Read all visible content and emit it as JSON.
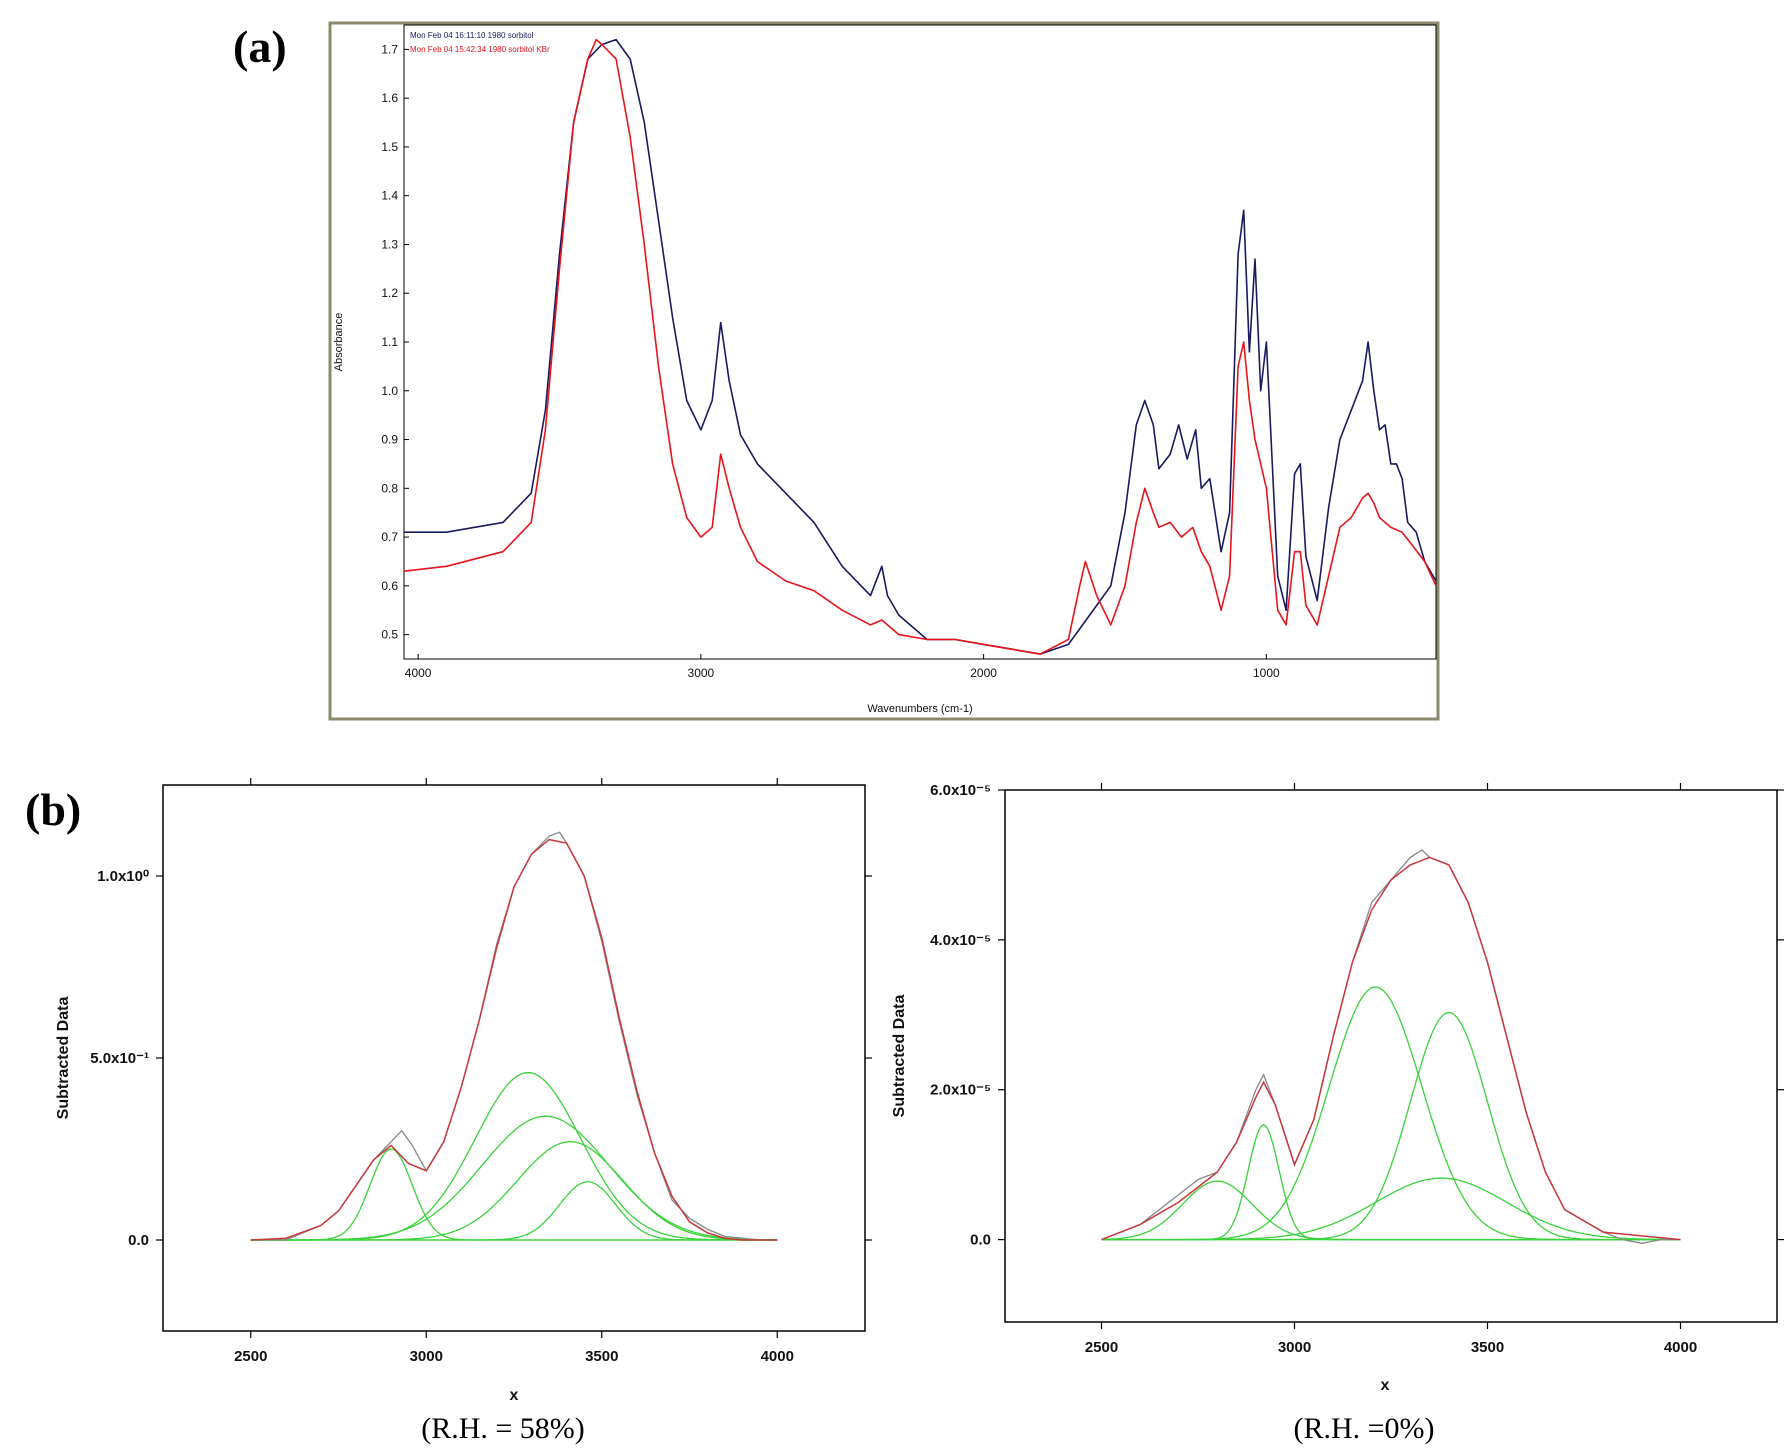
{
  "figure": {
    "label_a": "(a)",
    "label_b": "(b)",
    "caption_left": "(R.H. = 58%)",
    "caption_right": "(R.H. =0%)"
  },
  "colors": {
    "frame": "#8c8a6c",
    "series_blue": "#1a1a5e",
    "series_red": "#e8141c",
    "fit_red": "#c8383c",
    "raw_grey": "#888888",
    "component_green": "#3ad23a"
  },
  "chart_data": [
    {
      "id": "a",
      "type": "line",
      "xlabel": "Wavenumbers (cm-1)",
      "ylabel": "Absorbance",
      "xlim": [
        4050,
        400
      ],
      "ylim": [
        0.45,
        1.75
      ],
      "x_reversed": true,
      "x_ticks": [
        "4000",
        "3000",
        "2000",
        "1000"
      ],
      "x_tick_values": [
        4000,
        3000,
        2000,
        1000
      ],
      "y_ticks": [
        "0.5",
        "0.6",
        "0.7",
        "0.8",
        "0.9",
        "1.0",
        "1.1",
        "1.2",
        "1.3",
        "1.4",
        "1.5",
        "1.6",
        "1.7"
      ],
      "y_tick_values": [
        0.5,
        0.6,
        0.7,
        0.8,
        0.9,
        1.0,
        1.1,
        1.2,
        1.3,
        1.4,
        1.5,
        1.6,
        1.7
      ],
      "grid": false,
      "legend_position": "top-left",
      "series": [
        {
          "name": "Mon Feb 04 16:11:10 1980 sorbitol",
          "color": "#1a1a5e",
          "x": [
            4050,
            3900,
            3700,
            3600,
            3550,
            3500,
            3450,
            3400,
            3350,
            3300,
            3250,
            3200,
            3150,
            3100,
            3050,
            3000,
            2960,
            2930,
            2900,
            2860,
            2800,
            2700,
            2600,
            2500,
            2400,
            2360,
            2340,
            2300,
            2200,
            2100,
            2000,
            1900,
            1800,
            1700,
            1650,
            1600,
            1550,
            1500,
            1460,
            1430,
            1400,
            1380,
            1340,
            1310,
            1280,
            1250,
            1230,
            1200,
            1160,
            1130,
            1100,
            1080,
            1060,
            1040,
            1020,
            1000,
            960,
            930,
            900,
            880,
            860,
            820,
            780,
            740,
            700,
            660,
            640,
            620,
            600,
            580,
            560,
            540,
            520,
            500,
            470,
            440,
            400
          ],
          "y": [
            0.71,
            0.71,
            0.73,
            0.79,
            0.96,
            1.28,
            1.55,
            1.68,
            1.71,
            1.72,
            1.68,
            1.55,
            1.35,
            1.15,
            0.98,
            0.92,
            0.98,
            1.14,
            1.02,
            0.91,
            0.85,
            0.79,
            0.73,
            0.64,
            0.58,
            0.64,
            0.58,
            0.54,
            0.49,
            0.49,
            0.48,
            0.47,
            0.46,
            0.48,
            0.52,
            0.56,
            0.6,
            0.75,
            0.93,
            0.98,
            0.93,
            0.84,
            0.87,
            0.93,
            0.86,
            0.92,
            0.8,
            0.82,
            0.67,
            0.75,
            1.28,
            1.37,
            1.08,
            1.27,
            1.0,
            1.1,
            0.62,
            0.55,
            0.83,
            0.85,
            0.66,
            0.57,
            0.76,
            0.9,
            0.96,
            1.02,
            1.1,
            1.0,
            0.92,
            0.93,
            0.85,
            0.85,
            0.82,
            0.73,
            0.71,
            0.65,
            0.61
          ]
        },
        {
          "name": "Mon Feb 04 15:42:34 1980 sorbitol KBr",
          "color": "#e8141c",
          "x": [
            4050,
            3900,
            3700,
            3600,
            3550,
            3500,
            3450,
            3400,
            3370,
            3350,
            3300,
            3250,
            3200,
            3150,
            3100,
            3050,
            3000,
            2960,
            2930,
            2900,
            2860,
            2800,
            2700,
            2600,
            2500,
            2400,
            2360,
            2300,
            2200,
            2100,
            2000,
            1900,
            1800,
            1700,
            1660,
            1640,
            1600,
            1550,
            1500,
            1460,
            1430,
            1400,
            1380,
            1340,
            1300,
            1260,
            1230,
            1200,
            1160,
            1130,
            1100,
            1080,
            1060,
            1040,
            1000,
            960,
            930,
            900,
            880,
            860,
            820,
            780,
            740,
            700,
            660,
            640,
            620,
            600,
            560,
            520,
            480,
            440,
            400
          ],
          "y": [
            0.63,
            0.64,
            0.67,
            0.73,
            0.92,
            1.25,
            1.55,
            1.68,
            1.72,
            1.71,
            1.68,
            1.52,
            1.3,
            1.05,
            0.85,
            0.74,
            0.7,
            0.72,
            0.87,
            0.8,
            0.72,
            0.65,
            0.61,
            0.59,
            0.55,
            0.52,
            0.53,
            0.5,
            0.49,
            0.49,
            0.48,
            0.47,
            0.46,
            0.49,
            0.6,
            0.65,
            0.58,
            0.52,
            0.6,
            0.73,
            0.8,
            0.75,
            0.72,
            0.73,
            0.7,
            0.72,
            0.67,
            0.64,
            0.55,
            0.62,
            1.05,
            1.1,
            0.98,
            0.9,
            0.8,
            0.55,
            0.52,
            0.67,
            0.67,
            0.56,
            0.52,
            0.62,
            0.72,
            0.74,
            0.78,
            0.79,
            0.77,
            0.74,
            0.72,
            0.71,
            0.68,
            0.65,
            0.6
          ]
        }
      ]
    },
    {
      "id": "b-left",
      "type": "line",
      "xlabel": "x",
      "ylabel": "Subtracted Data",
      "xlim": [
        2250,
        4250
      ],
      "ylim": [
        -0.25,
        1.25
      ],
      "x_ticks": [
        "2500",
        "3000",
        "3500",
        "4000"
      ],
      "x_tick_values": [
        2500,
        3000,
        3500,
        4000
      ],
      "y_ticks": [
        "0.0",
        "5.0x10⁻¹",
        "1.0x10⁰"
      ],
      "y_tick_values": [
        0,
        0.5,
        1.0
      ],
      "grid": false,
      "fit_envelope": {
        "color": "#c8383c",
        "x": [
          2500,
          2600,
          2700,
          2750,
          2800,
          2850,
          2900,
          2950,
          3000,
          3050,
          3100,
          3150,
          3200,
          3250,
          3300,
          3350,
          3400,
          3450,
          3500,
          3550,
          3600,
          3650,
          3700,
          3750,
          3800,
          3850,
          3900,
          4000
        ],
        "y": [
          0.0,
          0.005,
          0.04,
          0.08,
          0.15,
          0.22,
          0.26,
          0.21,
          0.19,
          0.27,
          0.42,
          0.6,
          0.8,
          0.97,
          1.06,
          1.1,
          1.09,
          1.0,
          0.83,
          0.61,
          0.41,
          0.24,
          0.12,
          0.05,
          0.02,
          0.005,
          0.0,
          0.0
        ]
      },
      "raw_data": {
        "color": "#888888",
        "x": [
          2500,
          2600,
          2650,
          2700,
          2750,
          2800,
          2850,
          2900,
          2930,
          2960,
          3000,
          3050,
          3100,
          3150,
          3200,
          3250,
          3300,
          3350,
          3380,
          3400,
          3450,
          3500,
          3550,
          3600,
          3650,
          3700,
          3750,
          3800,
          3850,
          3900,
          3950,
          4000
        ],
        "y": [
          0.0,
          0.0,
          0.02,
          0.04,
          0.08,
          0.15,
          0.22,
          0.27,
          0.3,
          0.26,
          0.19,
          0.27,
          0.42,
          0.6,
          0.81,
          0.97,
          1.06,
          1.11,
          1.12,
          1.09,
          1.0,
          0.82,
          0.6,
          0.4,
          0.24,
          0.11,
          0.06,
          0.03,
          0.01,
          0.005,
          0.0,
          0.0
        ]
      },
      "components": [
        {
          "center": 2900,
          "height": 0.25,
          "width": 60
        },
        {
          "center": 3290,
          "height": 0.46,
          "width": 150
        },
        {
          "center": 3340,
          "height": 0.34,
          "width": 180
        },
        {
          "center": 3410,
          "height": 0.27,
          "width": 150
        },
        {
          "center": 3460,
          "height": 0.16,
          "width": 80
        }
      ],
      "component_color": "#3ad23a"
    },
    {
      "id": "b-right",
      "type": "line",
      "xlabel": "x",
      "ylabel": "Subtracted Data",
      "xlim": [
        2250,
        4250
      ],
      "ylim": [
        -1.1e-05,
        6e-05
      ],
      "x_ticks": [
        "2500",
        "3000",
        "3500",
        "4000"
      ],
      "x_tick_values": [
        2500,
        3000,
        3500,
        4000
      ],
      "y_ticks": [
        "0.0",
        "2.0x10⁻⁵",
        "4.0x10⁻⁵",
        "6.0x10⁻⁵"
      ],
      "y_tick_values": [
        0,
        2e-05,
        4e-05,
        6e-05
      ],
      "grid": false,
      "fit_envelope": {
        "color": "#c8383c",
        "x": [
          2500,
          2600,
          2700,
          2750,
          2800,
          2850,
          2900,
          2920,
          2950,
          3000,
          3050,
          3100,
          3150,
          3200,
          3250,
          3300,
          3350,
          3400,
          3450,
          3500,
          3550,
          3600,
          3650,
          3700,
          3800,
          4000
        ],
        "y": [
          0.0,
          2e-06,
          5e-06,
          7e-06,
          9e-06,
          1.3e-05,
          1.9e-05,
          2.1e-05,
          1.8e-05,
          1e-05,
          1.6e-05,
          2.7e-05,
          3.7e-05,
          4.4e-05,
          4.8e-05,
          5e-05,
          5.1e-05,
          5e-05,
          4.5e-05,
          3.7e-05,
          2.7e-05,
          1.7e-05,
          9e-06,
          4e-06,
          1e-06,
          0.0
        ]
      },
      "raw_data": {
        "color": "#888888",
        "x": [
          2500,
          2600,
          2700,
          2750,
          2800,
          2850,
          2900,
          2920,
          2950,
          3000,
          3050,
          3100,
          3150,
          3200,
          3250,
          3300,
          3330,
          3350,
          3400,
          3450,
          3500,
          3550,
          3600,
          3650,
          3700,
          3800,
          3850,
          3900,
          3950,
          4000
        ],
        "y": [
          0.0,
          2e-06,
          6e-06,
          8e-06,
          9e-06,
          1.3e-05,
          2e-05,
          2.2e-05,
          1.8e-05,
          1e-05,
          1.6e-05,
          2.7e-05,
          3.7e-05,
          4.5e-05,
          4.8e-05,
          5.1e-05,
          5.2e-05,
          5.1e-05,
          5e-05,
          4.5e-05,
          3.7e-05,
          2.7e-05,
          1.7e-05,
          9e-06,
          4e-06,
          1e-06,
          0.0,
          -5e-07,
          0.0,
          0.0
        ]
      },
      "components": [
        {
          "center": 2800,
          "height": 7.8e-06,
          "width": 90
        },
        {
          "center": 2920,
          "height": 1.53e-05,
          "width": 40
        },
        {
          "center": 3210,
          "height": 3.37e-05,
          "width": 120
        },
        {
          "center": 3400,
          "height": 3.03e-05,
          "width": 100
        },
        {
          "center": 3380,
          "height": 8.2e-06,
          "width": 170
        }
      ],
      "component_color": "#3ad23a"
    }
  ]
}
